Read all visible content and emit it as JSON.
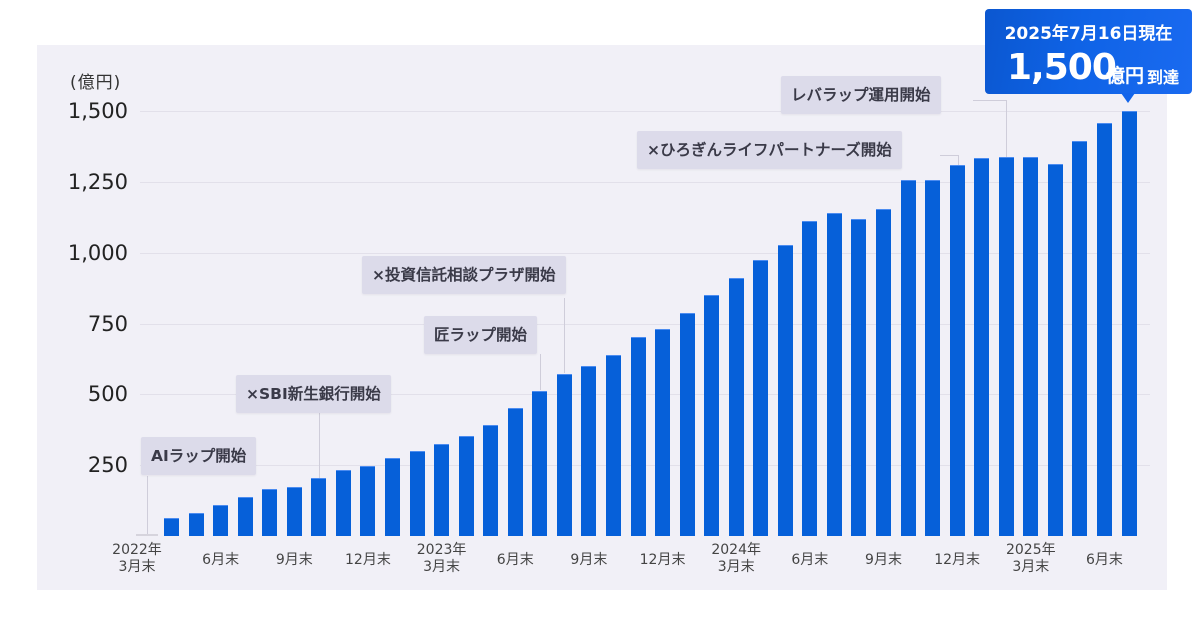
{
  "chart_data": {
    "type": "bar",
    "title": "",
    "ylabel": "(億円)",
    "xlabel": "",
    "ylim": [
      0,
      1500
    ],
    "yticks": [
      250,
      500,
      750,
      1000,
      1250,
      1500
    ],
    "ytick_labels": [
      "250",
      "500",
      "750",
      "1,000",
      "1,250",
      "1,500"
    ],
    "grid": true,
    "categories": [
      "2022-03",
      "2022-04",
      "2022-05",
      "2022-06",
      "2022-07",
      "2022-08",
      "2022-09",
      "2022-10",
      "2022-11",
      "2022-12",
      "2023-01",
      "2023-02",
      "2023-03",
      "2023-04",
      "2023-05",
      "2023-06",
      "2023-07",
      "2023-08",
      "2023-09",
      "2023-10",
      "2023-11",
      "2023-12",
      "2024-01",
      "2024-02",
      "2024-03",
      "2024-04",
      "2024-05",
      "2024-06",
      "2024-07",
      "2024-08",
      "2024-09",
      "2024-10",
      "2024-11",
      "2024-12",
      "2025-01",
      "2025-02",
      "2025-03",
      "2025-04",
      "2025-05",
      "2025-06",
      "2025-07"
    ],
    "values": [
      0,
      64,
      81,
      109,
      138,
      166,
      173,
      205,
      233,
      247,
      275,
      300,
      325,
      353,
      392,
      452,
      512,
      572,
      600,
      639,
      703,
      731,
      788,
      851,
      911,
      975,
      1028,
      1113,
      1141,
      1120,
      1155,
      1257,
      1257,
      1310,
      1335,
      1338,
      1338,
      1314,
      1395,
      1458,
      1500
    ],
    "x_tick_labels": [
      {
        "index": 0,
        "label": "2022年\n3月末"
      },
      {
        "index": 3,
        "label": "6月末"
      },
      {
        "index": 6,
        "label": "9月末"
      },
      {
        "index": 9,
        "label": "12月末"
      },
      {
        "index": 12,
        "label": "2023年\n3月末"
      },
      {
        "index": 15,
        "label": "6月末"
      },
      {
        "index": 18,
        "label": "9月末"
      },
      {
        "index": 21,
        "label": "12月末"
      },
      {
        "index": 24,
        "label": "2024年\n3月末"
      },
      {
        "index": 27,
        "label": "6月末"
      },
      {
        "index": 30,
        "label": "9月末"
      },
      {
        "index": 33,
        "label": "12月末"
      },
      {
        "index": 36,
        "label": "2025年\n3月末"
      },
      {
        "index": 39,
        "label": "6月末"
      }
    ],
    "annotations": [
      {
        "label": "AIラップ開始",
        "at_index": 0
      },
      {
        "label": "×SBI新生銀行開始",
        "at_index": 7
      },
      {
        "label": "匠ラップ開始",
        "at_index": 16
      },
      {
        "label": "×投資信託相談プラザ開始",
        "at_index": 17
      },
      {
        "label": "×ひろぎんライフパートナーズ開始",
        "at_index": 33
      },
      {
        "label": "レバラップ運用開始",
        "at_index": 35
      }
    ],
    "callout": {
      "date": "2025年7月16日現在",
      "value": "1,500",
      "unit": "億円",
      "suffix": "到達"
    },
    "bar_color": "#0660d9"
  },
  "axis": {
    "unit_label": "(億円)",
    "yticks": [
      "1,500",
      "1,250",
      "1,000",
      "750",
      "500",
      "250"
    ]
  },
  "annotations": {
    "ai_wrap": "AIラップ開始",
    "sbi": "×SBI新生銀行開始",
    "takumi": "匠ラップ開始",
    "toushin": "×投資信託相談プラザ開始",
    "hirogin": "×ひろぎんライフパートナーズ開始",
    "leverage": "レバラップ運用開始"
  },
  "callout": {
    "date": "2025年7月16日現在",
    "value": "1,500",
    "unit": "億円",
    "suffix": "到達",
    "color": "#0b57d0"
  }
}
